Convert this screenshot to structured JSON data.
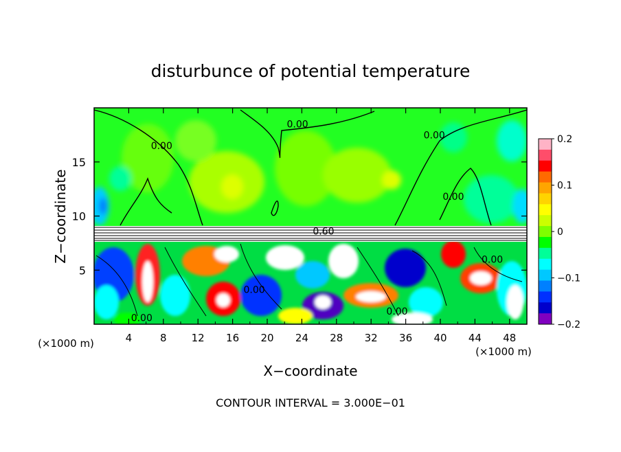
{
  "chart_data": {
    "type": "heatmap",
    "title": "disturbunce of potential temperature",
    "xlabel": "X−coordinate",
    "ylabel": "Z−coordinate",
    "x_unit_left": "(×1000 m)",
    "x_unit_right": "(×1000 m)",
    "footer": "CONTOUR INTERVAL = 3.000E−01",
    "xlim": [
      0,
      50
    ],
    "ylim": [
      0,
      20
    ],
    "x_ticks": [
      4,
      8,
      12,
      16,
      20,
      24,
      28,
      32,
      36,
      40,
      44,
      48
    ],
    "y_ticks": [
      5,
      10,
      15
    ],
    "colorbar": {
      "range": [
        -0.2,
        0.2
      ],
      "tick_values": [
        0.2,
        0.1,
        0,
        -0.1,
        -0.2
      ],
      "tick_labels": [
        "0.2",
        "0.1",
        "0",
        "−0.1",
        "−0.2"
      ],
      "colors": [
        "#ffb3c6",
        "#ff4d6a",
        "#ff0000",
        "#ff6a00",
        "#ffa500",
        "#ffd400",
        "#ffff00",
        "#ccff00",
        "#7fff00",
        "#00ff00",
        "#00ff99",
        "#00ffff",
        "#00c8ff",
        "#0080ff",
        "#0030ff",
        "#0000cc",
        "#8000c0"
      ]
    },
    "contour_labels": [
      {
        "text": "0.00",
        "x": 23.5,
        "z": 18.5
      },
      {
        "text": "0.00",
        "x": 7.8,
        "z": 16.5
      },
      {
        "text": "0.00",
        "x": 39.3,
        "z": 17.5
      },
      {
        "text": "0.00",
        "x": 41.5,
        "z": 11.8
      },
      {
        "text": "0.60",
        "x": 26.5,
        "z": 8.6
      },
      {
        "text": "0.00",
        "x": 46.0,
        "z": 6.0
      },
      {
        "text": "0.00",
        "x": 18.5,
        "z": 3.2
      },
      {
        "text": "0.00",
        "x": 5.5,
        "z": 0.6
      },
      {
        "text": "0.00",
        "x": 35.0,
        "z": 1.2
      }
    ]
  }
}
